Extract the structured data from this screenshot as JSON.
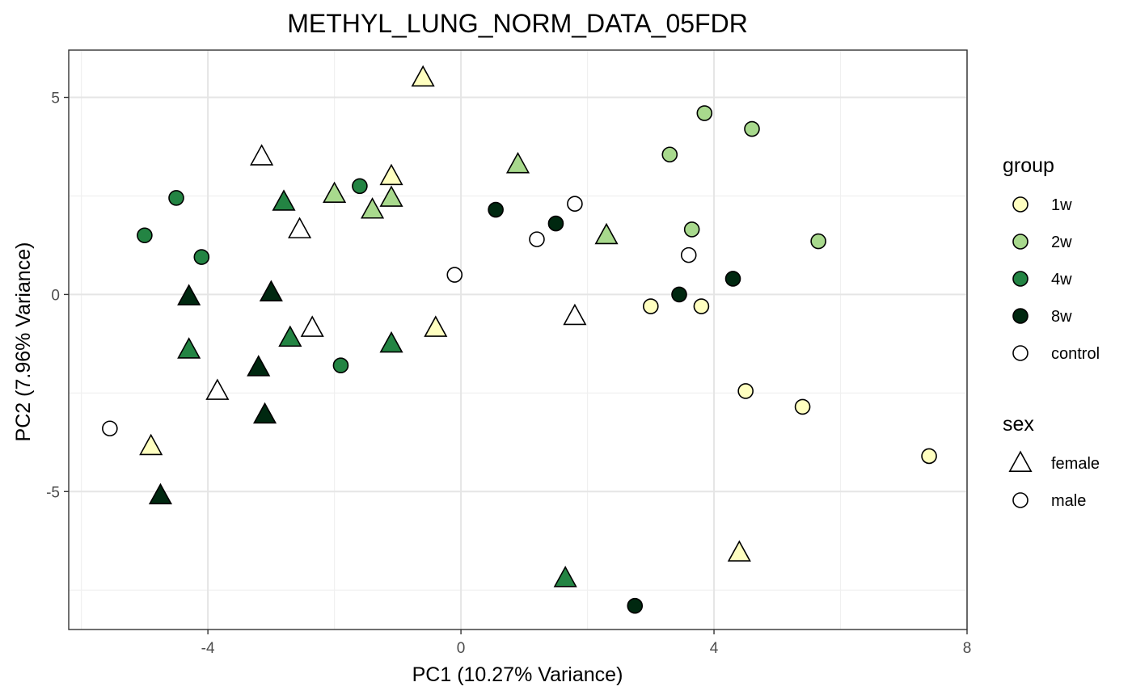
{
  "chart_data": {
    "type": "scatter",
    "title": "METHYL_LUNG_NORM_DATA_05FDR",
    "xlabel": "PC1 (10.27% Variance)",
    "ylabel": "PC2 (7.96% Variance)",
    "xlim": [
      -6.2,
      8.0
    ],
    "ylim": [
      -8.5,
      6.2
    ],
    "x_ticks": [
      -4,
      0,
      4,
      8
    ],
    "x_tick_labels": [
      "-4",
      "0",
      "4",
      "8"
    ],
    "y_ticks": [
      -5,
      0,
      5
    ],
    "y_tick_labels": [
      "-5",
      "0",
      "5"
    ],
    "grid": true,
    "legend_placement": "right",
    "colors": {
      "1w": "#ffffc0",
      "2w": "#a8d98d",
      "4w": "#238443",
      "8w": "#002810",
      "control": "#ffffff"
    },
    "legends": [
      {
        "title": "group",
        "kind": "color",
        "entries": [
          "1w",
          "2w",
          "4w",
          "8w",
          "control"
        ]
      },
      {
        "title": "sex",
        "kind": "shape",
        "entries": [
          "female",
          "male"
        ]
      }
    ],
    "points": [
      {
        "x": -0.6,
        "y": 5.5,
        "group": "1w",
        "sex": "female"
      },
      {
        "x": -1.1,
        "y": 3.0,
        "group": "1w",
        "sex": "female"
      },
      {
        "x": -0.4,
        "y": -0.85,
        "group": "1w",
        "sex": "female"
      },
      {
        "x": -4.9,
        "y": -3.85,
        "group": "1w",
        "sex": "female"
      },
      {
        "x": 4.4,
        "y": -6.55,
        "group": "1w",
        "sex": "female"
      },
      {
        "x": 3.0,
        "y": -0.3,
        "group": "1w",
        "sex": "male"
      },
      {
        "x": 3.8,
        "y": -0.3,
        "group": "1w",
        "sex": "male"
      },
      {
        "x": 4.5,
        "y": -2.45,
        "group": "1w",
        "sex": "male"
      },
      {
        "x": 5.4,
        "y": -2.85,
        "group": "1w",
        "sex": "male"
      },
      {
        "x": 7.4,
        "y": -4.1,
        "group": "1w",
        "sex": "male"
      },
      {
        "x": 0.9,
        "y": 3.3,
        "group": "2w",
        "sex": "female"
      },
      {
        "x": -2.0,
        "y": 2.55,
        "group": "2w",
        "sex": "female"
      },
      {
        "x": -1.1,
        "y": 2.45,
        "group": "2w",
        "sex": "female"
      },
      {
        "x": -1.4,
        "y": 2.15,
        "group": "2w",
        "sex": "female"
      },
      {
        "x": 2.3,
        "y": 1.5,
        "group": "2w",
        "sex": "female"
      },
      {
        "x": 3.85,
        "y": 4.6,
        "group": "2w",
        "sex": "male"
      },
      {
        "x": 4.6,
        "y": 4.2,
        "group": "2w",
        "sex": "male"
      },
      {
        "x": 3.3,
        "y": 3.55,
        "group": "2w",
        "sex": "male"
      },
      {
        "x": 3.65,
        "y": 1.65,
        "group": "2w",
        "sex": "male"
      },
      {
        "x": 5.65,
        "y": 1.35,
        "group": "2w",
        "sex": "male"
      },
      {
        "x": -2.8,
        "y": 2.35,
        "group": "4w",
        "sex": "female"
      },
      {
        "x": -4.3,
        "y": -1.4,
        "group": "4w",
        "sex": "female"
      },
      {
        "x": -2.7,
        "y": -1.1,
        "group": "4w",
        "sex": "female"
      },
      {
        "x": -1.1,
        "y": -1.25,
        "group": "4w",
        "sex": "female"
      },
      {
        "x": 1.65,
        "y": -7.2,
        "group": "4w",
        "sex": "female"
      },
      {
        "x": -4.5,
        "y": 2.45,
        "group": "4w",
        "sex": "male"
      },
      {
        "x": -5.0,
        "y": 1.5,
        "group": "4w",
        "sex": "male"
      },
      {
        "x": -4.1,
        "y": 0.95,
        "group": "4w",
        "sex": "male"
      },
      {
        "x": -1.6,
        "y": 2.75,
        "group": "4w",
        "sex": "male"
      },
      {
        "x": -1.9,
        "y": -1.8,
        "group": "4w",
        "sex": "male"
      },
      {
        "x": -4.3,
        "y": -0.05,
        "group": "8w",
        "sex": "female"
      },
      {
        "x": -3.0,
        "y": 0.05,
        "group": "8w",
        "sex": "female"
      },
      {
        "x": -3.2,
        "y": -1.85,
        "group": "8w",
        "sex": "female"
      },
      {
        "x": -3.1,
        "y": -3.05,
        "group": "8w",
        "sex": "female"
      },
      {
        "x": -4.75,
        "y": -5.1,
        "group": "8w",
        "sex": "female"
      },
      {
        "x": 0.55,
        "y": 2.15,
        "group": "8w",
        "sex": "male"
      },
      {
        "x": 1.5,
        "y": 1.8,
        "group": "8w",
        "sex": "male"
      },
      {
        "x": 3.45,
        "y": 0.0,
        "group": "8w",
        "sex": "male"
      },
      {
        "x": 4.3,
        "y": 0.4,
        "group": "8w",
        "sex": "male"
      },
      {
        "x": 2.75,
        "y": -7.9,
        "group": "8w",
        "sex": "male"
      },
      {
        "x": -3.15,
        "y": 3.5,
        "group": "control",
        "sex": "female"
      },
      {
        "x": -2.55,
        "y": 1.65,
        "group": "control",
        "sex": "female"
      },
      {
        "x": -2.35,
        "y": -0.85,
        "group": "control",
        "sex": "female"
      },
      {
        "x": -3.85,
        "y": -2.45,
        "group": "control",
        "sex": "female"
      },
      {
        "x": 1.8,
        "y": -0.55,
        "group": "control",
        "sex": "female"
      },
      {
        "x": 1.8,
        "y": 2.3,
        "group": "control",
        "sex": "male"
      },
      {
        "x": 1.2,
        "y": 1.4,
        "group": "control",
        "sex": "male"
      },
      {
        "x": -0.1,
        "y": 0.5,
        "group": "control",
        "sex": "male"
      },
      {
        "x": 3.6,
        "y": 1.0,
        "group": "control",
        "sex": "male"
      },
      {
        "x": -5.55,
        "y": -3.4,
        "group": "control",
        "sex": "male"
      }
    ]
  }
}
